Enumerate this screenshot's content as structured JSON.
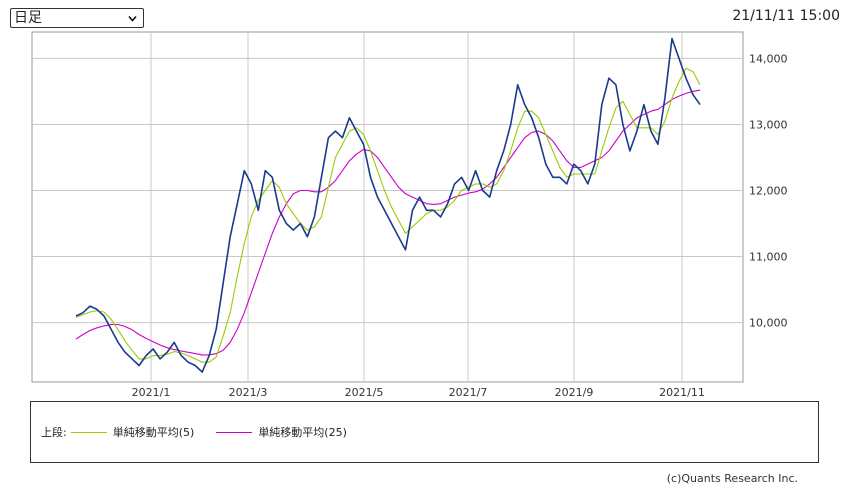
{
  "header": {
    "period_selected": "日足",
    "timestamp": "21/11/11 15:00"
  },
  "legend": {
    "prefix": "上段:",
    "items": [
      {
        "label": "単純移動平均(5)",
        "color": "#99cc00"
      },
      {
        "label": "単純移動平均(25)",
        "color": "#cc00cc"
      }
    ]
  },
  "copyright": "(c)Quants Research Inc.",
  "chart_data": {
    "type": "line",
    "x_ticks": [
      "2021/1",
      "2021/3",
      "2021/5",
      "2021/7",
      "2021/9",
      "2021/11"
    ],
    "y_ticks": [
      "14,000",
      "13,000",
      "12,000",
      "11,000",
      "10,000"
    ],
    "ylim": [
      9100,
      14400
    ],
    "grid": true,
    "price_color": "#1a3a8c",
    "series": [
      {
        "name": "",
        "role": "price",
        "values": [
          10100,
          10150,
          10250,
          10200,
          10100,
          9900,
          9700,
          9550,
          9450,
          9350,
          9500,
          9600,
          9450,
          9550,
          9700,
          9500,
          9400,
          9350,
          9250,
          9500,
          9900,
          10600,
          11300,
          11800,
          12300,
          12100,
          11700,
          12300,
          12200,
          11700,
          11500,
          11400,
          11500,
          11300,
          11600,
          12200,
          12800,
          12900,
          12800,
          13100,
          12900,
          12700,
          12200,
          11900,
          11700,
          11500,
          11300,
          11100,
          11700,
          11900,
          11700,
          11700,
          11600,
          11800,
          12100,
          12200,
          12000,
          12300,
          12000,
          11900,
          12300,
          12600,
          13000,
          13600,
          13300,
          13100,
          12800,
          12400,
          12200,
          12200,
          12100,
          12400,
          12300,
          12100,
          12400,
          13300,
          13700,
          13600,
          13000,
          12600,
          12900,
          13300,
          12900,
          12700,
          13400,
          14300,
          14000,
          13700,
          13450,
          13300
        ]
      },
      {
        "name": "単純移動平均(5)",
        "role": "sma5",
        "values": [
          10080,
          10120,
          10160,
          10180,
          10160,
          10050,
          9890,
          9720,
          9580,
          9450,
          9450,
          9500,
          9500,
          9520,
          9560,
          9540,
          9500,
          9450,
          9400,
          9400,
          9480,
          9800,
          10150,
          10700,
          11200,
          11600,
          11850,
          12000,
          12150,
          12050,
          11800,
          11650,
          11500,
          11400,
          11450,
          11600,
          12050,
          12500,
          12700,
          12900,
          12950,
          12850,
          12600,
          12300,
          12000,
          11750,
          11550,
          11350,
          11450,
          11550,
          11650,
          11700,
          11700,
          11750,
          11850,
          12000,
          12050,
          12100,
          12100,
          12050,
          12100,
          12300,
          12600,
          12950,
          13200,
          13200,
          13100,
          12850,
          12600,
          12350,
          12200,
          12250,
          12250,
          12250,
          12250,
          12600,
          12950,
          13250,
          13350,
          13150,
          12950,
          12950,
          12950,
          12850,
          13050,
          13400,
          13650,
          13850,
          13800,
          13600
        ]
      },
      {
        "name": "単純移動平均(25)",
        "role": "sma25",
        "values": [
          9750,
          9820,
          9880,
          9920,
          9950,
          9970,
          9970,
          9940,
          9890,
          9820,
          9760,
          9710,
          9660,
          9620,
          9590,
          9570,
          9550,
          9530,
          9510,
          9510,
          9530,
          9580,
          9700,
          9900,
          10150,
          10450,
          10750,
          11050,
          11350,
          11600,
          11800,
          11950,
          12000,
          12000,
          11980,
          11980,
          12050,
          12150,
          12300,
          12450,
          12550,
          12620,
          12600,
          12500,
          12350,
          12200,
          12050,
          11950,
          11900,
          11850,
          11800,
          11790,
          11800,
          11850,
          11900,
          11930,
          11960,
          11980,
          12020,
          12100,
          12200,
          12350,
          12500,
          12650,
          12800,
          12880,
          12900,
          12850,
          12750,
          12600,
          12450,
          12350,
          12350,
          12400,
          12450,
          12500,
          12600,
          12750,
          12900,
          13000,
          13100,
          13150,
          13200,
          13230,
          13300,
          13380,
          13430,
          13470,
          13500,
          13520
        ]
      }
    ]
  }
}
